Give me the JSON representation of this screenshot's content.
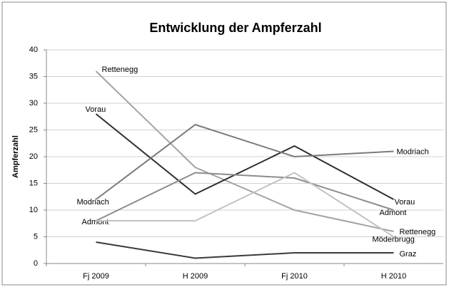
{
  "chart_data": {
    "type": "line",
    "title": "Entwicklung der Ampferzahl",
    "y_label": "Ampferzahl",
    "categories": [
      "Fj 2009",
      "H 2009",
      "Fj 2010",
      "H 2010"
    ],
    "ylim": [
      0,
      40
    ],
    "yticks": [
      0,
      5,
      10,
      15,
      20,
      25,
      30,
      35,
      40
    ],
    "grid": true,
    "series": [
      {
        "name": "Rettenegg",
        "color": "#a3a3a3",
        "values": [
          36,
          18,
          10,
          6
        ],
        "labeled_points": [
          0,
          3
        ]
      },
      {
        "name": "Vorau",
        "color": "#2e2e2e",
        "values": [
          28,
          13,
          22,
          12
        ],
        "labeled_points": [
          0,
          3
        ]
      },
      {
        "name": "Modriach",
        "color": "#7a7a7a",
        "values": [
          12,
          26,
          20,
          21
        ],
        "labeled_points": [
          0,
          3
        ]
      },
      {
        "name": "Admont",
        "color": "#8c8c8c",
        "values": [
          8,
          17,
          16,
          10
        ],
        "labeled_points": [
          0,
          3
        ]
      },
      {
        "name": "Möderbrugg",
        "color": "#c2c2c2",
        "values": [
          8,
          8,
          17,
          5
        ],
        "labeled_points": [
          3
        ]
      },
      {
        "name": "Graz",
        "color": "#3a3a3a",
        "values": [
          4,
          1,
          2,
          2
        ],
        "labeled_points": [
          3
        ]
      }
    ]
  }
}
